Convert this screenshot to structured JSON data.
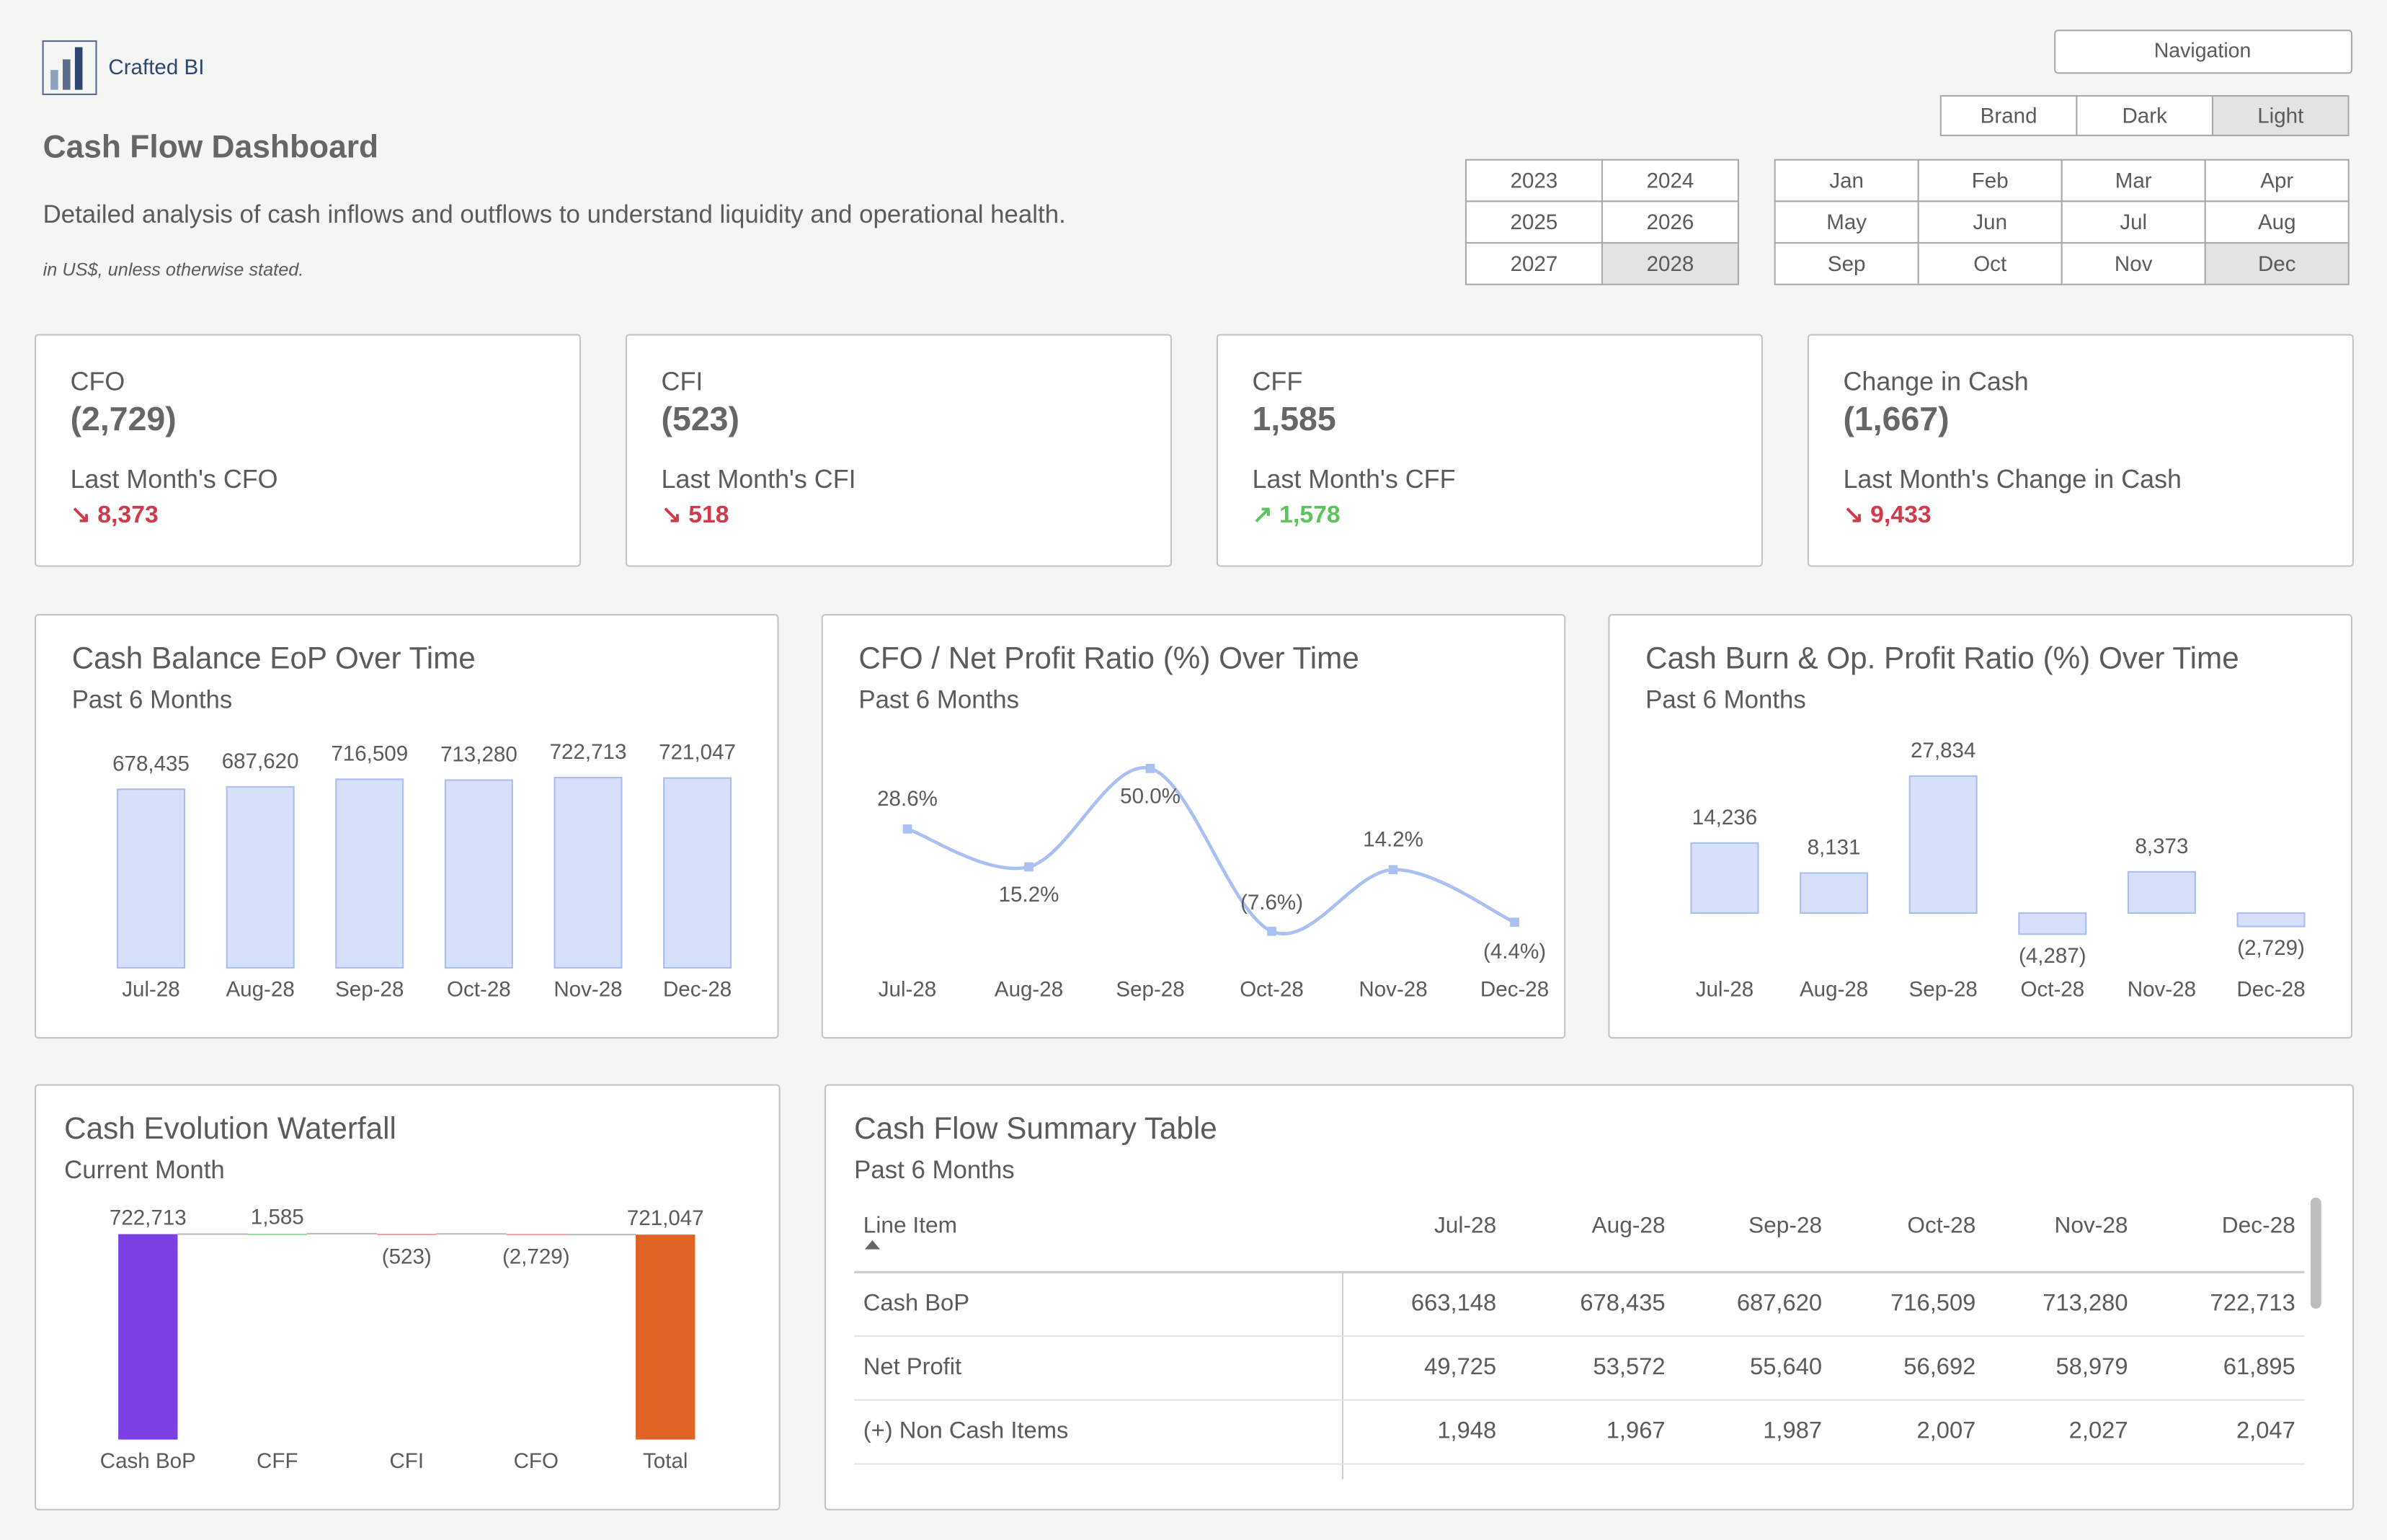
{
  "header": {
    "brand": "Crafted BI",
    "title": "Cash Flow Dashboard",
    "description": "Detailed analysis of cash inflows and outflows to understand liquidity and operational health.",
    "note": "in US$, unless otherwise stated."
  },
  "controls": {
    "navigation": "Navigation",
    "themes": [
      "Brand",
      "Dark",
      "Light"
    ],
    "selected_theme": "Light",
    "years": [
      "2023",
      "2024",
      "2025",
      "2026",
      "2027",
      "2028"
    ],
    "selected_year": "2028",
    "months": [
      "Jan",
      "Feb",
      "Mar",
      "Apr",
      "May",
      "Jun",
      "Jul",
      "Aug",
      "Sep",
      "Oct",
      "Nov",
      "Dec"
    ],
    "selected_month": "Dec"
  },
  "kpis": [
    {
      "title": "CFO",
      "value": "(2,729)",
      "subtitle": "Last Month's CFO",
      "change": "↘ 8,373",
      "trend": "down"
    },
    {
      "title": "CFI",
      "value": "(523)",
      "subtitle": "Last Month's CFI",
      "change": "↘ 518",
      "trend": "down"
    },
    {
      "title": "CFF",
      "value": "1,585",
      "subtitle": "Last Month's CFF",
      "change": "↗ 1,578",
      "trend": "up"
    },
    {
      "title": "Change in Cash",
      "value": "(1,667)",
      "subtitle": "Last Month's Change in Cash",
      "change": "↘ 9,433",
      "trend": "down"
    }
  ],
  "chart_data": [
    {
      "type": "bar",
      "title": "Cash Balance EoP Over Time",
      "subtitle": "Past 6 Months",
      "color": "#d6e0fb",
      "categories": [
        "Jul-28",
        "Aug-28",
        "Sep-28",
        "Oct-28",
        "Nov-28",
        "Dec-28"
      ],
      "values": [
        678435,
        687620,
        716509,
        713280,
        722713,
        721047
      ],
      "value_labels": [
        "678,435",
        "687,620",
        "716,509",
        "713,280",
        "722,713",
        "721,047"
      ]
    },
    {
      "type": "line",
      "title": "CFO / Net Profit Ratio (%) Over Time",
      "subtitle": "Past 6 Months",
      "color": "#a9c0f3",
      "categories": [
        "Jul-28",
        "Aug-28",
        "Sep-28",
        "Oct-28",
        "Nov-28",
        "Dec-28"
      ],
      "values": [
        28.6,
        15.2,
        50.0,
        -7.6,
        14.2,
        -4.4
      ],
      "value_labels": [
        "28.6%",
        "15.2%",
        "50.0%",
        "(7.6%)",
        "14.2%",
        "(4.4%)"
      ]
    },
    {
      "type": "bar",
      "title": "Cash Burn & Op. Profit Ratio (%) Over Time",
      "subtitle": "Past 6 Months",
      "color": "#d6e0fb",
      "categories": [
        "Jul-28",
        "Aug-28",
        "Sep-28",
        "Oct-28",
        "Nov-28",
        "Dec-28"
      ],
      "values": [
        14236,
        8131,
        27834,
        -4287,
        8373,
        -2729
      ],
      "value_labels": [
        "14,236",
        "8,131",
        "27,834",
        "(4,287)",
        "8,373",
        "(2,729)"
      ]
    },
    {
      "type": "waterfall",
      "title": "Cash Evolution Waterfall",
      "subtitle": "Current Month",
      "colors": {
        "start": "#7b3fe4",
        "total": "#e06326",
        "increase": "#9fd89f",
        "decrease": "#f0a0a8"
      },
      "categories": [
        "Cash BoP",
        "CFF",
        "CFI",
        "CFO",
        "Total"
      ],
      "values": [
        722713,
        1585,
        -523,
        -2729,
        721047
      ],
      "value_labels": [
        "722,713",
        "1,585",
        "(523)",
        "(2,729)",
        "721,047"
      ],
      "totals": [
        true,
        false,
        false,
        false,
        true
      ]
    }
  ],
  "table": {
    "title": "Cash Flow Summary Table",
    "subtitle": "Past 6 Months",
    "columns": [
      "Line Item",
      "Jul-28",
      "Aug-28",
      "Sep-28",
      "Oct-28",
      "Nov-28",
      "Dec-28"
    ],
    "rows": [
      [
        "Cash BoP",
        "663,148",
        "678,435",
        "687,620",
        "716,509",
        "713,280",
        "722,713"
      ],
      [
        "Net Profit",
        "49,725",
        "53,572",
        "55,640",
        "56,692",
        "58,979",
        "61,895"
      ],
      [
        "(+) Non Cash Items",
        "1,948",
        "1,967",
        "1,987",
        "2,007",
        "2,027",
        "2,047"
      ]
    ]
  }
}
